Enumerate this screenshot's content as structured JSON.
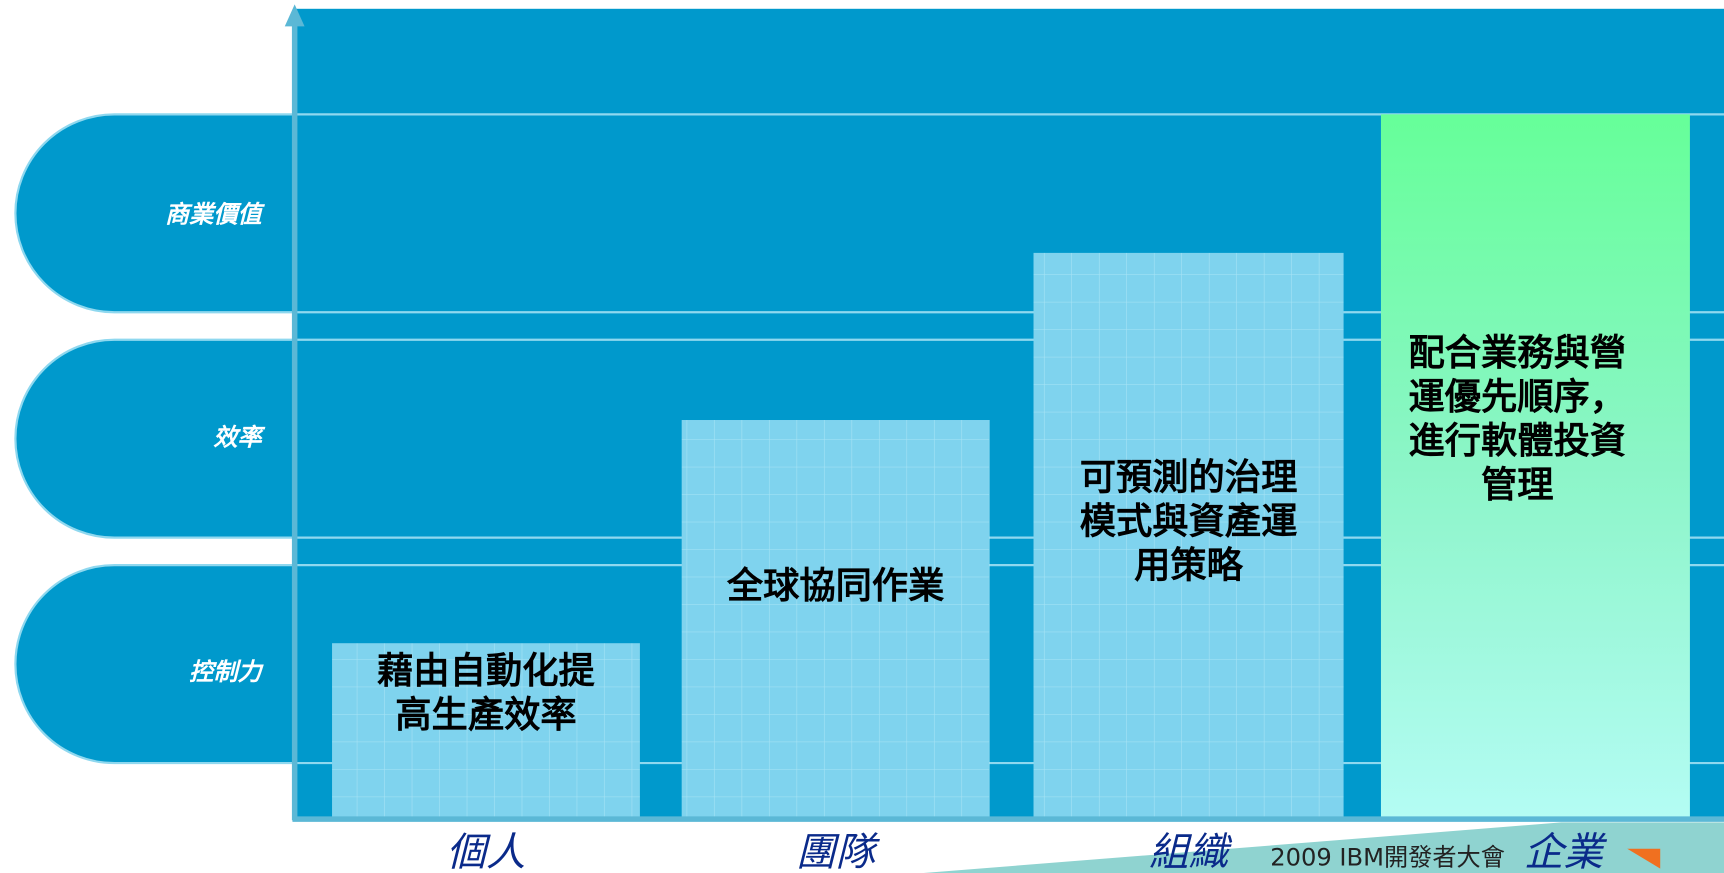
{
  "rows": [
    {
      "label": "商業價值"
    },
    {
      "label": "效率"
    },
    {
      "label": "控制力"
    }
  ],
  "columns": [
    {
      "label": "個人",
      "text_lines": [
        "藉由自動化提",
        "高生產效率"
      ]
    },
    {
      "label": "團隊",
      "text_lines": [
        "全球協同作業"
      ]
    },
    {
      "label": "組織",
      "text_lines": [
        "可預測的治理",
        "模式與資產運",
        "用策略"
      ]
    },
    {
      "label": "企業",
      "text_lines": [
        "配合業務與營",
        "運優先順序，",
        "進行軟體投資",
        "管理"
      ]
    }
  ],
  "footer": "2009 IBM開發者大會"
}
